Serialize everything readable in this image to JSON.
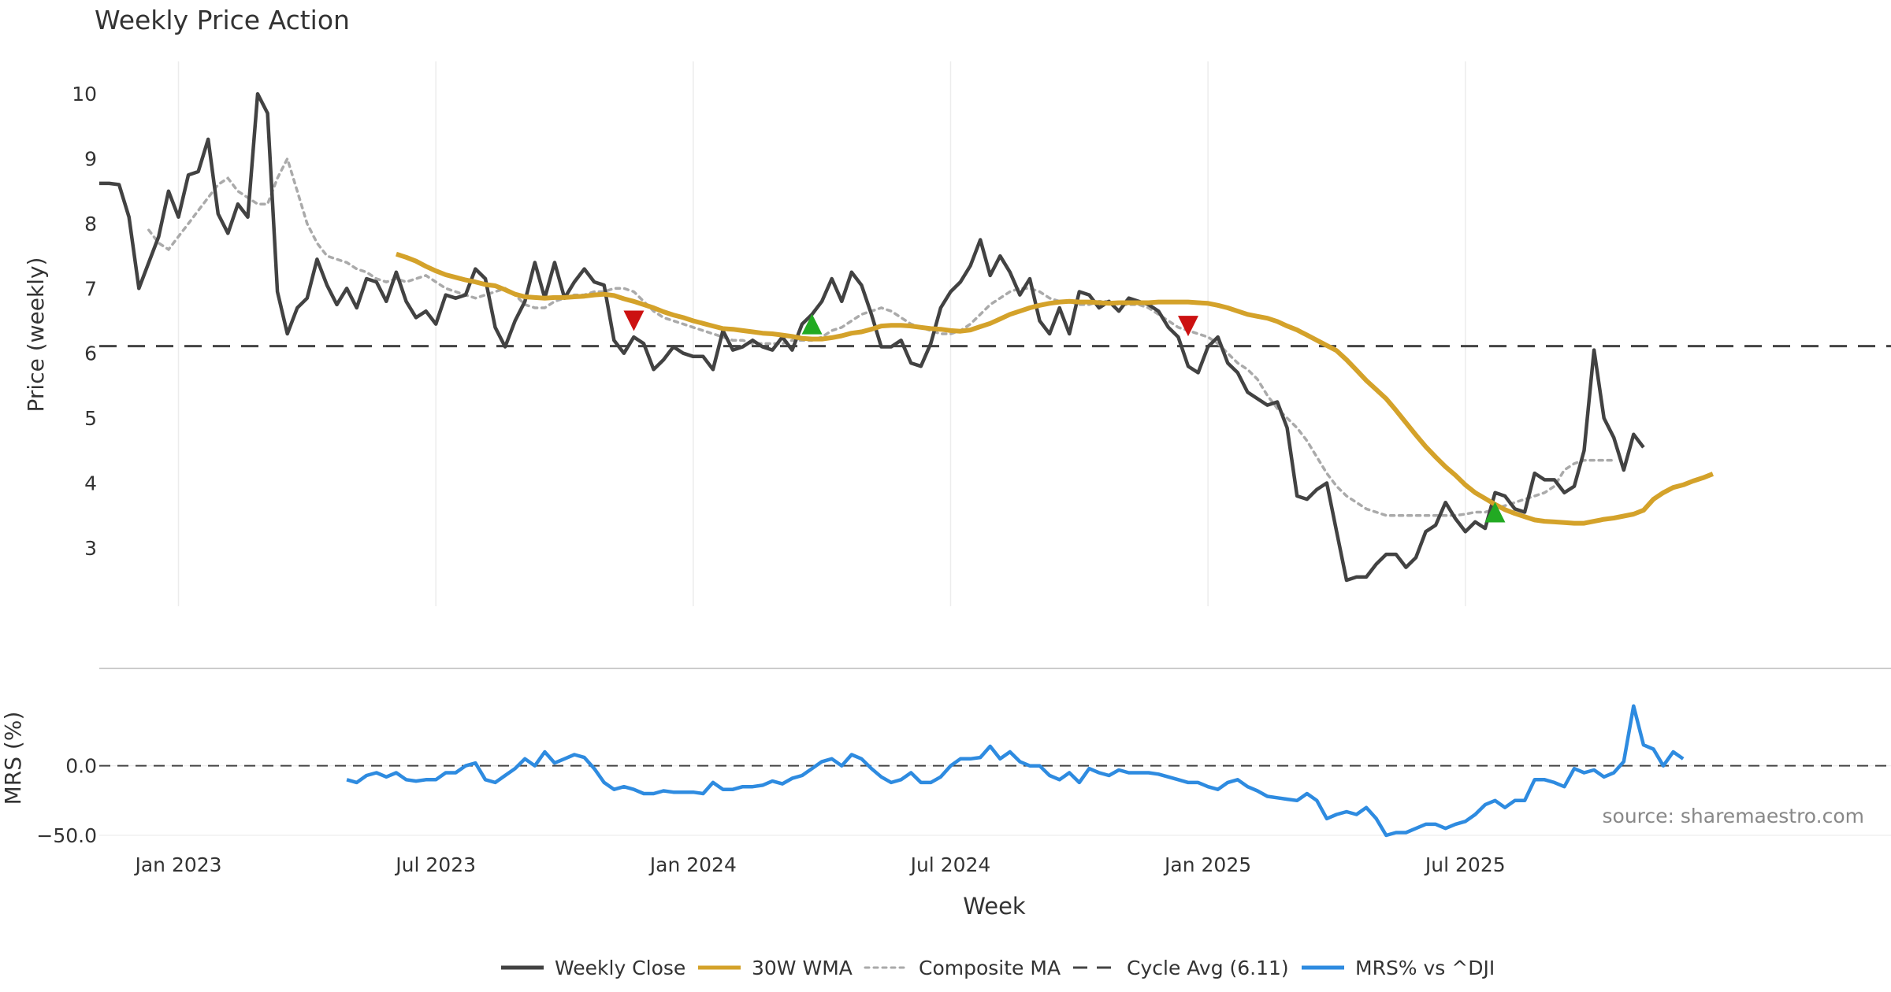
{
  "chart_data": {
    "type": "line",
    "title": "Weekly Price Action",
    "source": "source: sharemaestro.com",
    "xlabel": "Week",
    "x_ticks": [
      "Jan 2023",
      "Jul 2023",
      "Jan 2024",
      "Jul 2024",
      "Jan 2025",
      "Jul 2025"
    ],
    "x_range": [
      -8,
      173
    ],
    "x_tick_weeks": [
      0,
      26,
      52,
      78,
      104,
      130
    ],
    "price_panel": {
      "ylabel": "Price (weekly)",
      "ylim": [
        2.1,
        10.5
      ],
      "y_ticks": [
        3,
        4,
        5,
        6,
        7,
        8,
        9,
        10
      ],
      "cycle_avg": 6.11,
      "weekly_close": {
        "name": "Weekly Close",
        "color": "#424242",
        "start_week": -8,
        "values": [
          8.62,
          8.62,
          8.6,
          8.1,
          7.0,
          7.4,
          7.8,
          8.5,
          8.1,
          8.75,
          8.8,
          9.3,
          8.15,
          7.85,
          8.3,
          8.1,
          10.0,
          9.7,
          6.95,
          6.3,
          6.7,
          6.85,
          7.45,
          7.05,
          6.75,
          7.0,
          6.7,
          7.15,
          7.1,
          6.8,
          7.25,
          6.8,
          6.55,
          6.65,
          6.45,
          6.9,
          6.85,
          6.9,
          7.3,
          7.15,
          6.4,
          6.1,
          6.5,
          6.8,
          7.4,
          6.85,
          7.4,
          6.85,
          7.1,
          7.3,
          7.1,
          7.05,
          6.2,
          6.0,
          6.25,
          6.15,
          5.75,
          5.9,
          6.1,
          6.0,
          5.95,
          5.95,
          5.75,
          6.35,
          6.05,
          6.1,
          6.2,
          6.1,
          6.05,
          6.25,
          6.05,
          6.45,
          6.6,
          6.8,
          7.15,
          6.8,
          7.25,
          7.05,
          6.6,
          6.1,
          6.1,
          6.2,
          5.85,
          5.8,
          6.15,
          6.7,
          6.95,
          7.1,
          7.35,
          7.75,
          7.2,
          7.5,
          7.25,
          6.9,
          7.15,
          6.5,
          6.3,
          6.7,
          6.3,
          6.95,
          6.9,
          6.7,
          6.8,
          6.65,
          6.85,
          6.8,
          6.75,
          6.65,
          6.4,
          6.25,
          5.8,
          5.7,
          6.1,
          6.25,
          5.85,
          5.7,
          5.4,
          5.3,
          5.2,
          5.25,
          4.85,
          3.8,
          3.75,
          3.9,
          4.0,
          3.25,
          2.5,
          2.55,
          2.55,
          2.75,
          2.9,
          2.9,
          2.7,
          2.85,
          3.25,
          3.35,
          3.7,
          3.45,
          3.25,
          3.4,
          3.3,
          3.85,
          3.8,
          3.6,
          3.55,
          4.15,
          4.05,
          4.05,
          3.85,
          3.95,
          4.5,
          6.05,
          5.0,
          4.7,
          4.2,
          4.75,
          4.55
        ]
      },
      "wma_30w": {
        "name": "30W WMA",
        "color": "#d4a22a",
        "start_week": 22,
        "values": [
          7.53,
          7.48,
          7.42,
          7.34,
          7.27,
          7.21,
          7.17,
          7.13,
          7.1,
          7.06,
          7.04,
          6.98,
          6.91,
          6.87,
          6.86,
          6.85,
          6.86,
          6.86,
          6.87,
          6.88,
          6.9,
          6.91,
          6.89,
          6.84,
          6.8,
          6.75,
          6.7,
          6.64,
          6.59,
          6.55,
          6.5,
          6.46,
          6.42,
          6.38,
          6.37,
          6.35,
          6.33,
          6.31,
          6.3,
          6.28,
          6.26,
          6.23,
          6.22,
          6.22,
          6.24,
          6.27,
          6.31,
          6.33,
          6.37,
          6.42,
          6.43,
          6.43,
          6.42,
          6.4,
          6.38,
          6.37,
          6.35,
          6.34,
          6.36,
          6.41,
          6.46,
          6.53,
          6.6,
          6.65,
          6.7,
          6.74,
          6.77,
          6.79,
          6.8,
          6.79,
          6.79,
          6.78,
          6.77,
          6.78,
          6.78,
          6.78,
          6.78,
          6.79,
          6.79,
          6.79,
          6.79,
          6.78,
          6.77,
          6.74,
          6.7,
          6.65,
          6.6,
          6.57,
          6.54,
          6.49,
          6.42,
          6.36,
          6.28,
          6.2,
          6.12,
          6.04,
          5.9,
          5.74,
          5.58,
          5.44,
          5.3,
          5.12,
          4.93,
          4.74,
          4.56,
          4.4,
          4.25,
          4.12,
          3.97,
          3.85,
          3.76,
          3.67,
          3.59,
          3.53,
          3.48,
          3.43,
          3.41,
          3.4,
          3.39,
          3.38,
          3.38,
          3.41,
          3.44,
          3.46,
          3.49,
          3.52,
          3.58,
          3.75,
          3.85,
          3.93,
          3.97,
          4.03,
          4.08,
          4.14
        ]
      },
      "composite_ma": {
        "name": "Composite MA",
        "color": "#aaaaaa",
        "start_week": -3,
        "values": [
          7.9,
          7.7,
          7.6,
          7.8,
          8.0,
          8.2,
          8.4,
          8.6,
          8.7,
          8.5,
          8.4,
          8.3,
          8.3,
          8.7,
          9.0,
          8.5,
          8.0,
          7.7,
          7.5,
          7.45,
          7.4,
          7.3,
          7.25,
          7.15,
          7.1,
          7.15,
          7.1,
          7.15,
          7.2,
          7.1,
          7.0,
          6.95,
          6.9,
          6.85,
          6.9,
          6.95,
          7.0,
          6.9,
          6.75,
          6.7,
          6.7,
          6.8,
          6.85,
          6.9,
          6.9,
          6.95,
          6.95,
          7.0,
          7.0,
          6.95,
          6.8,
          6.65,
          6.55,
          6.5,
          6.45,
          6.4,
          6.35,
          6.3,
          6.25,
          6.2,
          6.2,
          6.15,
          6.15,
          6.15,
          6.15,
          6.2,
          6.2,
          6.2,
          6.25,
          6.35,
          6.4,
          6.5,
          6.6,
          6.65,
          6.7,
          6.65,
          6.55,
          6.45,
          6.4,
          6.35,
          6.3,
          6.3,
          6.35,
          6.45,
          6.6,
          6.75,
          6.85,
          6.95,
          7.0,
          7.0,
          6.95,
          6.85,
          6.8,
          6.8,
          6.75,
          6.75,
          6.8,
          6.8,
          6.75,
          6.75,
          6.75,
          6.7,
          6.6,
          6.5,
          6.4,
          6.35,
          6.3,
          6.25,
          6.15,
          6.0,
          5.85,
          5.75,
          5.6,
          5.35,
          5.15,
          5.0,
          4.85,
          4.65,
          4.4,
          4.15,
          3.95,
          3.8,
          3.7,
          3.6,
          3.55,
          3.5,
          3.5,
          3.5,
          3.5,
          3.5,
          3.5,
          3.5,
          3.5,
          3.52,
          3.55,
          3.55,
          3.6,
          3.65,
          3.7,
          3.75,
          3.8,
          3.85,
          3.95,
          4.2,
          4.3,
          4.35,
          4.35,
          4.35,
          4.35
        ]
      },
      "markers": [
        {
          "type": "sell",
          "week": 46,
          "value": 6.5,
          "color": "#cc1111"
        },
        {
          "type": "buy",
          "week": 64,
          "value": 6.45,
          "color": "#22aa22"
        },
        {
          "type": "sell",
          "week": 102,
          "value": 6.42,
          "color": "#cc1111"
        },
        {
          "type": "buy",
          "week": 133,
          "value": 3.55,
          "color": "#22aa22"
        }
      ]
    },
    "mrs_panel": {
      "ylabel": "MRS (%)",
      "ylim": [
        -50,
        70
      ],
      "y_ticks": [
        0.0,
        -50.0
      ],
      "y_tick_labels": [
        "0.0",
        "−50.0"
      ],
      "mrs": {
        "name": "MRS% vs ^DJI",
        "color": "#2e8be0",
        "start_week": 17,
        "values": [
          -10,
          -12,
          -7,
          -5,
          -8,
          -5,
          -10,
          -11,
          -10,
          -10,
          -5,
          -5,
          0,
          2,
          -10,
          -12,
          -7,
          -2,
          5,
          0,
          10,
          2,
          5,
          8,
          6,
          -2,
          -12,
          -17,
          -15,
          -17,
          -20,
          -20,
          -18,
          -19,
          -19,
          -19,
          -20,
          -12,
          -17,
          -17,
          -15,
          -15,
          -14,
          -11,
          -13,
          -9,
          -7,
          -2,
          3,
          5,
          0,
          8,
          5,
          -2,
          -8,
          -12,
          -10,
          -5,
          -12,
          -12,
          -8,
          0,
          5,
          5,
          6,
          14,
          5,
          10,
          3,
          0,
          0,
          -7,
          -10,
          -5,
          -12,
          -2,
          -5,
          -7,
          -3,
          -5,
          -5,
          -5,
          -6,
          -8,
          -10,
          -12,
          -12,
          -15,
          -17,
          -12,
          -10,
          -15,
          -18,
          -22,
          -23,
          -24,
          -25,
          -20,
          -25,
          -38,
          -35,
          -33,
          -35,
          -30,
          -38,
          -50,
          -48,
          -48,
          -45,
          -42,
          -42,
          -45,
          -42,
          -40,
          -35,
          -28,
          -25,
          -30,
          -25,
          -25,
          -10,
          -10,
          -12,
          -15,
          -2,
          -5,
          -3,
          -8,
          -5,
          3,
          43,
          15,
          12,
          0,
          10,
          5
        ]
      }
    },
    "legend": [
      {
        "name": "Weekly Close",
        "style": "solid",
        "color": "#424242"
      },
      {
        "name": "30W WMA",
        "style": "solid",
        "color": "#d4a22a"
      },
      {
        "name": "Composite MA",
        "style": "dotted",
        "color": "#aaaaaa"
      },
      {
        "name": "Cycle Avg (6.11)",
        "style": "dashed",
        "color": "#444444"
      },
      {
        "name": "MRS% vs ^DJI",
        "style": "solid",
        "color": "#2e8be0"
      }
    ]
  }
}
